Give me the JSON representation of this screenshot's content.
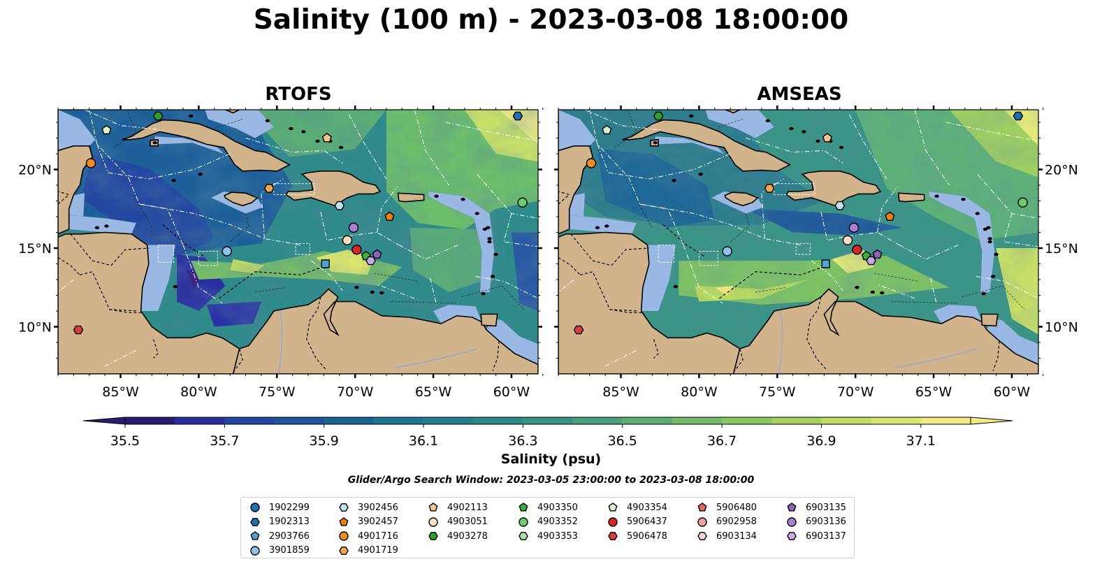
{
  "title": "Salinity (100 m) - 2023-03-08 18:00:00",
  "panels": [
    {
      "id": "rtofs",
      "title": "RTOFS",
      "field_style": "rtofs"
    },
    {
      "id": "amseas",
      "title": "AMSEAS",
      "field_style": "amseas"
    }
  ],
  "map_extent": {
    "lon_min": -89,
    "lon_max": -58.3,
    "lat_min": 7,
    "lat_max": 23.8
  },
  "lon_ticks": [
    {
      "v": -85,
      "label": "85°W"
    },
    {
      "v": -80,
      "label": "80°W"
    },
    {
      "v": -75,
      "label": "75°W"
    },
    {
      "v": -70,
      "label": "70°W"
    },
    {
      "v": -65,
      "label": "65°W"
    },
    {
      "v": -60,
      "label": "60°W"
    }
  ],
  "lat_ticks": [
    {
      "v": 10,
      "label": "10°N"
    },
    {
      "v": 15,
      "label": "15°N"
    },
    {
      "v": 20,
      "label": "20°N"
    }
  ],
  "colorbar": {
    "label": "Salinity (psu)",
    "vmin": 35.5,
    "vmax": 37.2,
    "levels": [
      35.5,
      35.6,
      35.7,
      35.8,
      35.9,
      36.0,
      36.1,
      36.2,
      36.3,
      36.4,
      36.5,
      36.6,
      36.7,
      36.8,
      36.9,
      37.0,
      37.1
    ],
    "colors": [
      "#2b1b6e",
      "#2a2fa0",
      "#2345a3",
      "#1e559e",
      "#1b6596",
      "#1d7591",
      "#247f8c",
      "#2d8989",
      "#3a9485",
      "#4aa07f",
      "#5eae76",
      "#75bb6b",
      "#8bc864",
      "#a5d361",
      "#c2dd66",
      "#dae571",
      "#f0ea84"
    ],
    "ticks": [
      35.5,
      35.7,
      35.9,
      36.1,
      36.3,
      36.5,
      36.7,
      36.9,
      37.1
    ],
    "tick_labels": [
      "35.5",
      "35.7",
      "35.9",
      "36.1",
      "36.3",
      "36.5",
      "36.7",
      "36.9",
      "37.1"
    ]
  },
  "search_window": "Glider/Argo Search Window: 2023-03-05 23:00:00 to 2023-03-08 18:00:00",
  "colors": {
    "land": "#d1b48c",
    "shelf_water": "#9ab8e4",
    "deep_west": "#2b1b6e"
  },
  "floats": [
    {
      "id": "1902299",
      "marker": "circle",
      "color": "#1f6fb4",
      "lon": null,
      "lat": null
    },
    {
      "id": "1902313",
      "marker": "hexagon",
      "color": "#1f6fb4",
      "lon": -59.6,
      "lat": 23.4
    },
    {
      "id": "2903766",
      "marker": "pentagon",
      "color": "#4ea3d9",
      "lon": null,
      "lat": null
    },
    {
      "id": "3901859",
      "marker": "circle",
      "color": "#8fc3ec",
      "lon": -78.2,
      "lat": 14.8
    },
    {
      "id": "3902456",
      "marker": "hexagon",
      "color": "#bfe2f5",
      "lon": -71.0,
      "lat": 17.7
    },
    {
      "id": "3902457",
      "marker": "pentagon",
      "color": "#f07d0e",
      "lon": -67.8,
      "lat": 17.0
    },
    {
      "id": "4901716",
      "marker": "circle",
      "color": "#f58a22",
      "lon": -86.9,
      "lat": 20.4
    },
    {
      "id": "4901719",
      "marker": "hexagon",
      "color": "#f7a64b",
      "lon": -75.5,
      "lat": 18.8
    },
    {
      "id": "4902113",
      "marker": "pentagon",
      "color": "#f9c38a",
      "lon": -71.8,
      "lat": 22.0
    },
    {
      "id": "4903051",
      "marker": "circle",
      "color": "#fde0c1",
      "lon": -70.5,
      "lat": 15.5
    },
    {
      "id": "4903278",
      "marker": "hexagon",
      "color": "#2ca02c",
      "lon": -82.6,
      "lat": 23.4
    },
    {
      "id": "4903350",
      "marker": "pentagon",
      "color": "#3bb33b",
      "lon": -69.3,
      "lat": 14.5
    },
    {
      "id": "4903352",
      "marker": "circle",
      "color": "#6ccc6c",
      "lon": -59.3,
      "lat": 17.9
    },
    {
      "id": "4903353",
      "marker": "hexagon",
      "color": "#a6e3a0",
      "lon": null,
      "lat": null
    },
    {
      "id": "4903354",
      "marker": "pentagon",
      "color": "#d4f5cc",
      "lon": -85.9,
      "lat": 22.5
    },
    {
      "id": "5906437",
      "marker": "circle",
      "color": "#d62728",
      "lon": -69.9,
      "lat": 14.9
    },
    {
      "id": "5906478",
      "marker": "hexagon",
      "color": "#d84040",
      "lon": -87.7,
      "lat": 9.8
    },
    {
      "id": "5906480",
      "marker": "pentagon",
      "color": "#e36868",
      "lon": null,
      "lat": null
    },
    {
      "id": "6902958",
      "marker": "circle",
      "color": "#f2a0a0",
      "lon": null,
      "lat": null
    },
    {
      "id": "6903134",
      "marker": "hexagon",
      "color": "#fbd3d3",
      "lon": null,
      "lat": null
    },
    {
      "id": "6903135",
      "marker": "pentagon",
      "color": "#8e63b8",
      "lon": -68.6,
      "lat": 14.6
    },
    {
      "id": "6903136",
      "marker": "circle",
      "color": "#a97fd2",
      "lon": -70.1,
      "lat": 16.3
    },
    {
      "id": "6903137",
      "marker": "hexagon",
      "color": "#c9a8ec",
      "lon": -69.0,
      "lat": 14.2
    }
  ],
  "extra_marker": {
    "marker": "square",
    "color": "#4ea3d9",
    "lon": -71.9,
    "lat": 14.0
  }
}
